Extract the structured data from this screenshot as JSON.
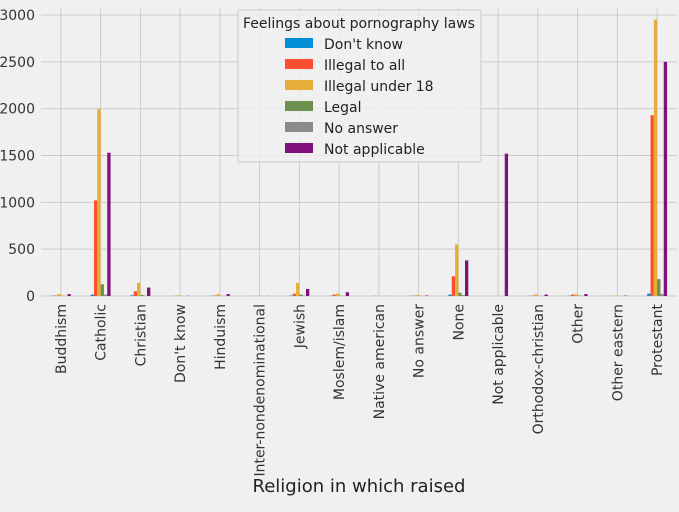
{
  "chart_data": {
    "type": "bar",
    "title": "",
    "xlabel": "Religion in which raised",
    "ylabel": "",
    "ylim": [
      0,
      3100
    ],
    "yticks": [
      0,
      500,
      1000,
      1500,
      2000,
      2500,
      3000
    ],
    "grid": true,
    "legend_position": "top-center",
    "legend_title": "Feelings about pornography laws",
    "categories": [
      "Buddhism",
      "Catholic",
      "Christian",
      "Don't know",
      "Hinduism",
      "Inter-nondenominational",
      "Jewish",
      "Moslem/islam",
      "Native american",
      "No answer",
      "None",
      "Not applicable",
      "Orthodox-christian",
      "Other",
      "Other eastern",
      "Protestant"
    ],
    "series": [
      {
        "name": "Don't know",
        "color": "#008fd5",
        "values": [
          3,
          15,
          8,
          0,
          3,
          0,
          5,
          3,
          0,
          2,
          15,
          0,
          2,
          3,
          1,
          25
        ]
      },
      {
        "name": "Illegal to all",
        "color": "#fc4f30",
        "values": [
          5,
          1020,
          50,
          2,
          5,
          1,
          25,
          15,
          2,
          3,
          210,
          0,
          5,
          15,
          1,
          1930
        ]
      },
      {
        "name": "Illegal under 18",
        "color": "#e5ae38",
        "values": [
          20,
          2000,
          140,
          8,
          20,
          3,
          140,
          25,
          2,
          10,
          550,
          0,
          18,
          20,
          5,
          2950
        ]
      },
      {
        "name": "Legal",
        "color": "#6d904f",
        "values": [
          3,
          125,
          10,
          1,
          3,
          1,
          15,
          5,
          0,
          2,
          35,
          0,
          2,
          5,
          1,
          180
        ]
      },
      {
        "name": "No answer",
        "color": "#8b8b8b",
        "values": [
          1,
          15,
          3,
          0,
          1,
          0,
          3,
          1,
          0,
          1,
          10,
          0,
          1,
          2,
          0,
          20
        ]
      },
      {
        "name": "Not applicable",
        "color": "#810f7c",
        "values": [
          20,
          1530,
          90,
          2,
          20,
          1,
          75,
          40,
          1,
          5,
          380,
          1520,
          15,
          20,
          4,
          2500
        ]
      }
    ]
  }
}
